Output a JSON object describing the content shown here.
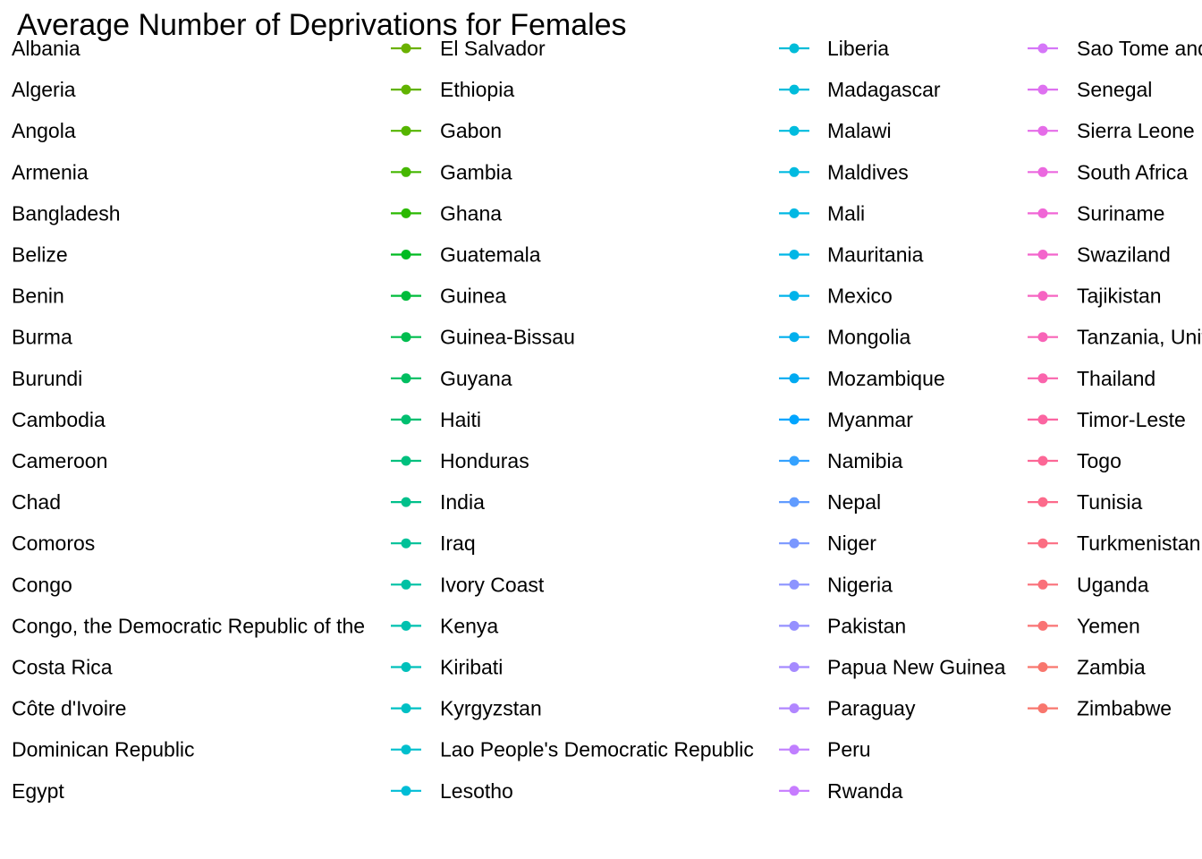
{
  "chart_data": {
    "type": "line",
    "title": "Average Number of Deprivations for Females",
    "legend_placement": "fills-plot-area",
    "series": [
      {
        "name": "Albania",
        "color": "#F8766D"
      },
      {
        "name": "Algeria",
        "color": "#F47C56"
      },
      {
        "name": "Angola",
        "color": "#EF8200"
      },
      {
        "name": "Armenia",
        "color": "#E88800"
      },
      {
        "name": "Bangladesh",
        "color": "#E08E00"
      },
      {
        "name": "Belize",
        "color": "#D89300"
      },
      {
        "name": "Benin",
        "color": "#CF9800"
      },
      {
        "name": "Burma",
        "color": "#C59D00"
      },
      {
        "name": "Burundi",
        "color": "#BBA200"
      },
      {
        "name": "Cambodia",
        "color": "#B0A600"
      },
      {
        "name": "Cameroon",
        "color": "#A4AA00"
      },
      {
        "name": "Chad",
        "color": "#97AE00"
      },
      {
        "name": "Comoros",
        "color": "#89B200"
      },
      {
        "name": "Congo",
        "color": "#79B500"
      },
      {
        "name": "Congo, the Democratic Republic of the",
        "color": "#74B700"
      },
      {
        "name": "Costa Rica",
        "color": "#6FB800"
      },
      {
        "name": "Côte d'Ivoire",
        "color": "#6AB900"
      },
      {
        "name": "Dominican Republic",
        "color": "#66BA00"
      },
      {
        "name": "Egypt",
        "color": "#70B400"
      },
      {
        "name": "El Salvador",
        "color": "#6BB100"
      },
      {
        "name": "Ethiopia",
        "color": "#61B300"
      },
      {
        "name": "Gabon",
        "color": "#55B500"
      },
      {
        "name": "Gambia",
        "color": "#45B700"
      },
      {
        "name": "Ghana",
        "color": "#2AB900"
      },
      {
        "name": "Guatemala",
        "color": "#00BB21"
      },
      {
        "name": "Guinea",
        "color": "#00BC3B"
      },
      {
        "name": "Guinea-Bissau",
        "color": "#00BD4F"
      },
      {
        "name": "Guyana",
        "color": "#00BE60"
      },
      {
        "name": "Haiti",
        "color": "#00BF70"
      },
      {
        "name": "Honduras",
        "color": "#00C07E"
      },
      {
        "name": "India",
        "color": "#00C08B"
      },
      {
        "name": "Iraq",
        "color": "#00C198"
      },
      {
        "name": "Ivory Coast",
        "color": "#00C1A4"
      },
      {
        "name": "Kenya",
        "color": "#00C1AF"
      },
      {
        "name": "Kiribati",
        "color": "#00C0BA"
      },
      {
        "name": "Kyrgyzstan",
        "color": "#00C0C4"
      },
      {
        "name": "Lao People's Democratic Republic",
        "color": "#00BFCD"
      },
      {
        "name": "Lesotho",
        "color": "#00BDD6"
      },
      {
        "name": "Liberia",
        "color": "#00BCD8"
      },
      {
        "name": "Madagascar",
        "color": "#00BCDB"
      },
      {
        "name": "Malawi",
        "color": "#00BCDE"
      },
      {
        "name": "Maldives",
        "color": "#00BAE0"
      },
      {
        "name": "Mali",
        "color": "#00B8E3"
      },
      {
        "name": "Mauritania",
        "color": "#00B6E6"
      },
      {
        "name": "Mexico",
        "color": "#00B3EA"
      },
      {
        "name": "Mongolia",
        "color": "#00AFED"
      },
      {
        "name": "Mozambique",
        "color": "#00AAF1"
      },
      {
        "name": "Myanmar",
        "color": "#00A5FF"
      },
      {
        "name": "Namibia",
        "color": "#35A2FF"
      },
      {
        "name": "Nepal",
        "color": "#619CFF"
      },
      {
        "name": "Niger",
        "color": "#7A97FF"
      },
      {
        "name": "Nigeria",
        "color": "#8C94FF"
      },
      {
        "name": "Pakistan",
        "color": "#9590FF"
      },
      {
        "name": "Papua New Guinea",
        "color": "#A58AFF"
      },
      {
        "name": "Paraguay",
        "color": "#B186FF"
      },
      {
        "name": "Peru",
        "color": "#C07FFF"
      },
      {
        "name": "Rwanda",
        "color": "#C77CFF"
      },
      {
        "name": "Sao Tome and Principe",
        "color": "#D576F8"
      },
      {
        "name": "Senegal",
        "color": "#DE71F0"
      },
      {
        "name": "Sierra Leone",
        "color": "#E56CE8"
      },
      {
        "name": "South Africa",
        "color": "#EB68DF"
      },
      {
        "name": "Suriname",
        "color": "#F066D6"
      },
      {
        "name": "Swaziland",
        "color": "#F365CC"
      },
      {
        "name": "Tajikistan",
        "color": "#F664C2"
      },
      {
        "name": "Tanzania, United Republic of",
        "color": "#F864B7"
      },
      {
        "name": "Thailand",
        "color": "#FA64AC"
      },
      {
        "name": "Timor-Leste",
        "color": "#FB65A1"
      },
      {
        "name": "Togo",
        "color": "#FC6796"
      },
      {
        "name": "Tunisia",
        "color": "#FC6A8B"
      },
      {
        "name": "Turkmenistan",
        "color": "#FB6D82"
      },
      {
        "name": "Uganda",
        "color": "#FA707A"
      },
      {
        "name": "Yemen",
        "color": "#F97374"
      },
      {
        "name": "Zambia",
        "color": "#F8766D"
      },
      {
        "name": "Zimbabwe",
        "color": "#F8766D"
      }
    ]
  }
}
